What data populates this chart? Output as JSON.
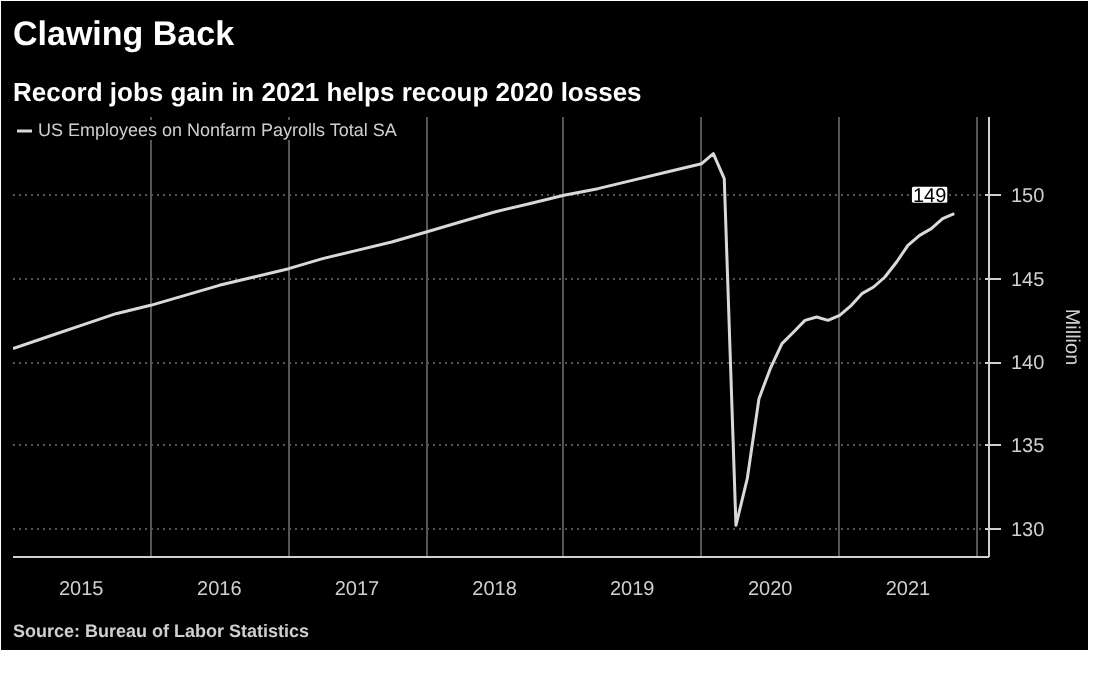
{
  "chart_data": {
    "type": "line",
    "title": "Clawing Back",
    "subtitle": "Record jobs gain in 2021 helps recoup 2020 losses",
    "ylabel": "Million",
    "x": [
      "2015-01",
      "2015-04",
      "2015-07",
      "2015-10",
      "2016-01",
      "2016-04",
      "2016-07",
      "2016-10",
      "2017-01",
      "2017-04",
      "2017-07",
      "2017-10",
      "2018-01",
      "2018-04",
      "2018-07",
      "2018-10",
      "2019-01",
      "2019-04",
      "2019-07",
      "2019-10",
      "2020-01",
      "2020-02",
      "2020-03",
      "2020-04",
      "2020-05",
      "2020-06",
      "2020-07",
      "2020-08",
      "2020-09",
      "2020-10",
      "2020-11",
      "2020-12",
      "2021-01",
      "2021-02",
      "2021-03",
      "2021-04",
      "2021-05",
      "2021-06",
      "2021-07",
      "2021-08",
      "2021-09",
      "2021-10",
      "2021-11"
    ],
    "series": [
      {
        "name": "US Employees on Nonfarm Payrolls Total SA",
        "color": "#d9d9d9",
        "values": [
          140.8,
          141.5,
          142.2,
          142.9,
          143.4,
          144.0,
          144.6,
          145.1,
          145.6,
          146.2,
          146.7,
          147.2,
          147.8,
          148.4,
          149.0,
          149.5,
          150.0,
          150.4,
          150.9,
          151.4,
          151.9,
          152.5,
          151.0,
          130.2,
          133.0,
          137.8,
          139.6,
          141.1,
          141.8,
          142.5,
          142.7,
          142.5,
          142.8,
          143.4,
          144.1,
          144.5,
          145.1,
          146.0,
          147.0,
          147.6,
          148.0,
          148.6,
          148.9
        ],
        "value_labels": [
          null,
          null,
          null,
          null,
          null,
          null,
          null,
          null,
          null,
          null,
          null,
          null,
          null,
          null,
          null,
          null,
          null,
          null,
          null,
          null,
          null,
          null,
          null,
          null,
          null,
          null,
          null,
          null,
          null,
          null,
          null,
          null,
          null,
          null,
          null,
          null,
          null,
          null,
          null,
          null,
          null,
          null,
          "149"
        ]
      }
    ],
    "xlim": [
      "2015-01",
      "2022-02"
    ],
    "xticks": [
      {
        "value": "2015-07",
        "label": "2015"
      },
      {
        "value": "2016-01",
        "label": null
      },
      {
        "value": "2016-07",
        "label": "2016"
      },
      {
        "value": "2017-01",
        "label": null
      },
      {
        "value": "2017-07",
        "label": "2017"
      },
      {
        "value": "2018-01",
        "label": null
      },
      {
        "value": "2018-07",
        "label": "2018"
      },
      {
        "value": "2019-01",
        "label": null
      },
      {
        "value": "2019-07",
        "label": "2019"
      },
      {
        "value": "2020-01",
        "label": null
      },
      {
        "value": "2020-07",
        "label": "2020"
      },
      {
        "value": "2021-01",
        "label": null
      },
      {
        "value": "2021-07",
        "label": "2021"
      },
      {
        "value": "2022-01",
        "label": null
      }
    ],
    "ylim": [
      128.3,
      154.7
    ],
    "yticks": [
      130,
      135,
      140,
      145,
      150
    ],
    "grid": true,
    "legend": "top left",
    "marker": "none",
    "line_style": "solid",
    "annotations": [
      "Source: Bureau of Labor Statistics"
    ]
  }
}
